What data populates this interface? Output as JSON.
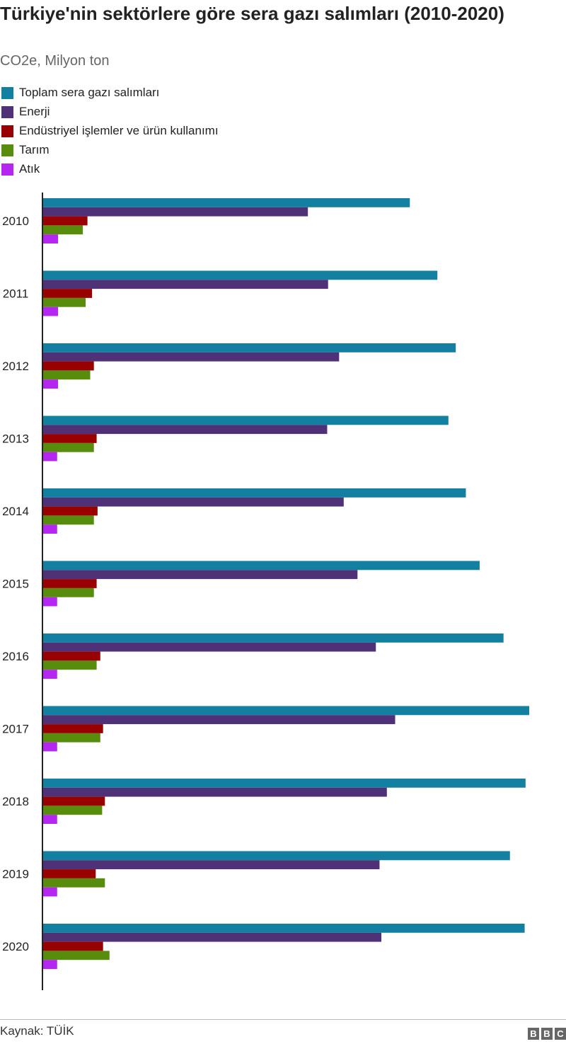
{
  "title": "Türkiye'nin sektörlere göre sera gazı salımları (2010-2020)",
  "subtitle": "CO2e, Milyon ton",
  "source": "Kaynak: TÜİK",
  "logo_text": "BBC",
  "chart_data": {
    "type": "bar",
    "orientation": "horizontal",
    "categories": [
      "2010",
      "2011",
      "2012",
      "2013",
      "2014",
      "2015",
      "2016",
      "2017",
      "2018",
      "2019",
      "2020"
    ],
    "series": [
      {
        "name": "Toplam sera gazı salımları",
        "color": "#1380a1",
        "values": [
          400,
          430,
          450,
          442,
          461,
          476,
          502,
          530,
          526,
          509,
          525
        ]
      },
      {
        "name": "Enerji",
        "color": "#4f3177",
        "values": [
          289,
          311,
          323,
          310,
          328,
          343,
          363,
          384,
          375,
          367,
          369
        ]
      },
      {
        "name": "Endüstriyel işlemler ve ürün kullanımı",
        "color": "#990000",
        "values": [
          49,
          54,
          56,
          59,
          60,
          59,
          63,
          66,
          68,
          58,
          66
        ]
      },
      {
        "name": "Tarım",
        "color": "#588c0c",
        "values": [
          44,
          47,
          52,
          56,
          56,
          56,
          59,
          63,
          65,
          68,
          73
        ]
      },
      {
        "name": "Atık",
        "color": "#b526f2",
        "values": [
          17,
          17,
          17,
          16,
          16,
          16,
          16,
          16,
          16,
          16,
          16
        ]
      }
    ],
    "xticks": [
      0,
      50,
      100,
      150,
      200,
      250,
      300,
      350,
      400,
      450,
      500,
      550
    ],
    "xlim": [
      0,
      550
    ],
    "grid": false,
    "legend": "top-left"
  }
}
